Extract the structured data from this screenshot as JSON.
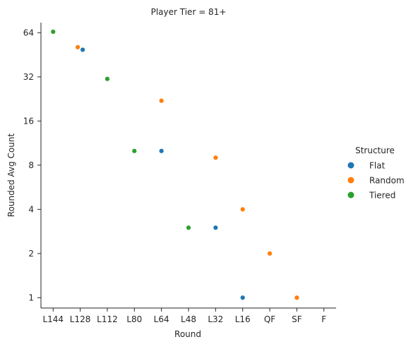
{
  "chart_data": {
    "type": "scatter",
    "title": "Player Tier = 81+",
    "xlabel": "Round",
    "ylabel": "Rounded Avg Count",
    "y_scale": "log2",
    "ylim": [
      0.85,
      75
    ],
    "categories": [
      "L144",
      "L128",
      "L112",
      "L80",
      "L64",
      "L48",
      "L32",
      "L16",
      "QF",
      "SF",
      "F"
    ],
    "yticks": [
      1,
      2,
      4,
      8,
      16,
      32,
      64
    ],
    "grid": false,
    "legend": {
      "title": "Structure",
      "placement": "right"
    },
    "series": [
      {
        "name": "Flat",
        "color": "#1f77b4",
        "points": [
          {
            "x": "L128",
            "y": 49
          },
          {
            "x": "L64",
            "y": 10
          },
          {
            "x": "L32",
            "y": 3
          },
          {
            "x": "L16",
            "y": 1
          }
        ]
      },
      {
        "name": "Random",
        "color": "#ff7f0e",
        "points": [
          {
            "x": "L128",
            "y": 51
          },
          {
            "x": "L64",
            "y": 22
          },
          {
            "x": "L32",
            "y": 9
          },
          {
            "x": "L16",
            "y": 4
          },
          {
            "x": "QF",
            "y": 2
          },
          {
            "x": "SF",
            "y": 1
          }
        ]
      },
      {
        "name": "Tiered",
        "color": "#2ca02c",
        "points": [
          {
            "x": "L144",
            "y": 65
          },
          {
            "x": "L112",
            "y": 31
          },
          {
            "x": "L80",
            "y": 10
          },
          {
            "x": "L48",
            "y": 3
          }
        ]
      }
    ]
  }
}
